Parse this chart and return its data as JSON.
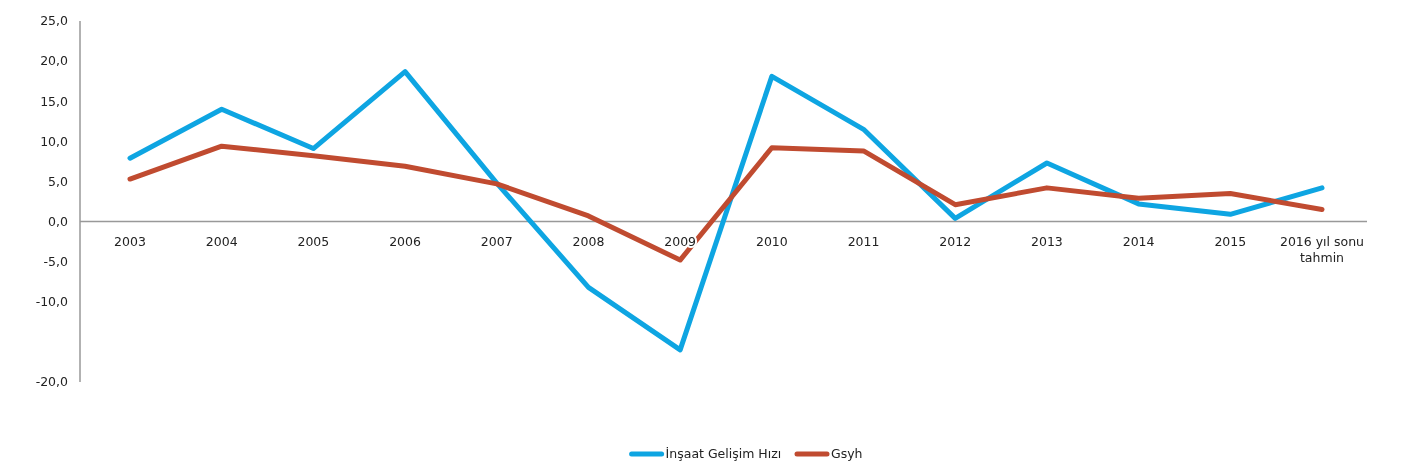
{
  "chart_data": {
    "type": "line",
    "categories": [
      "2003",
      "2004",
      "2005",
      "2006",
      "2007",
      "2008",
      "2009",
      "2010",
      "2011",
      "2012",
      "2013",
      "2014",
      "2015",
      "2016 yıl sonu tahmin"
    ],
    "series": [
      {
        "name": "İnşaat Gelişim Hızı",
        "color": "#0ea5e2",
        "values": [
          7.9,
          14.0,
          9.1,
          18.7,
          4.8,
          -8.2,
          -16.0,
          18.1,
          11.5,
          0.4,
          7.3,
          2.2,
          0.9,
          4.2
        ]
      },
      {
        "name": "Gsyh",
        "color": "#c04b30",
        "values": [
          5.3,
          9.4,
          8.2,
          6.9,
          4.7,
          0.7,
          -4.8,
          9.2,
          8.8,
          2.1,
          4.2,
          2.9,
          3.5,
          1.5
        ]
      }
    ],
    "ylim": [
      -20,
      25
    ],
    "yticks": [
      {
        "value": 25,
        "label": "25,0"
      },
      {
        "value": 20,
        "label": "20,0"
      },
      {
        "value": 15,
        "label": "15,0"
      },
      {
        "value": 10,
        "label": "10,0"
      },
      {
        "value": 5,
        "label": "5,0"
      },
      {
        "value": 0,
        "label": "0,0"
      },
      {
        "value": -5,
        "label": "-5,0"
      },
      {
        "value": -10,
        "label": "-10,0"
      },
      {
        "value": -20,
        "label": "-20,0"
      }
    ],
    "legend": "bottom",
    "grid": false,
    "marker": "none",
    "line_style": "solid"
  }
}
